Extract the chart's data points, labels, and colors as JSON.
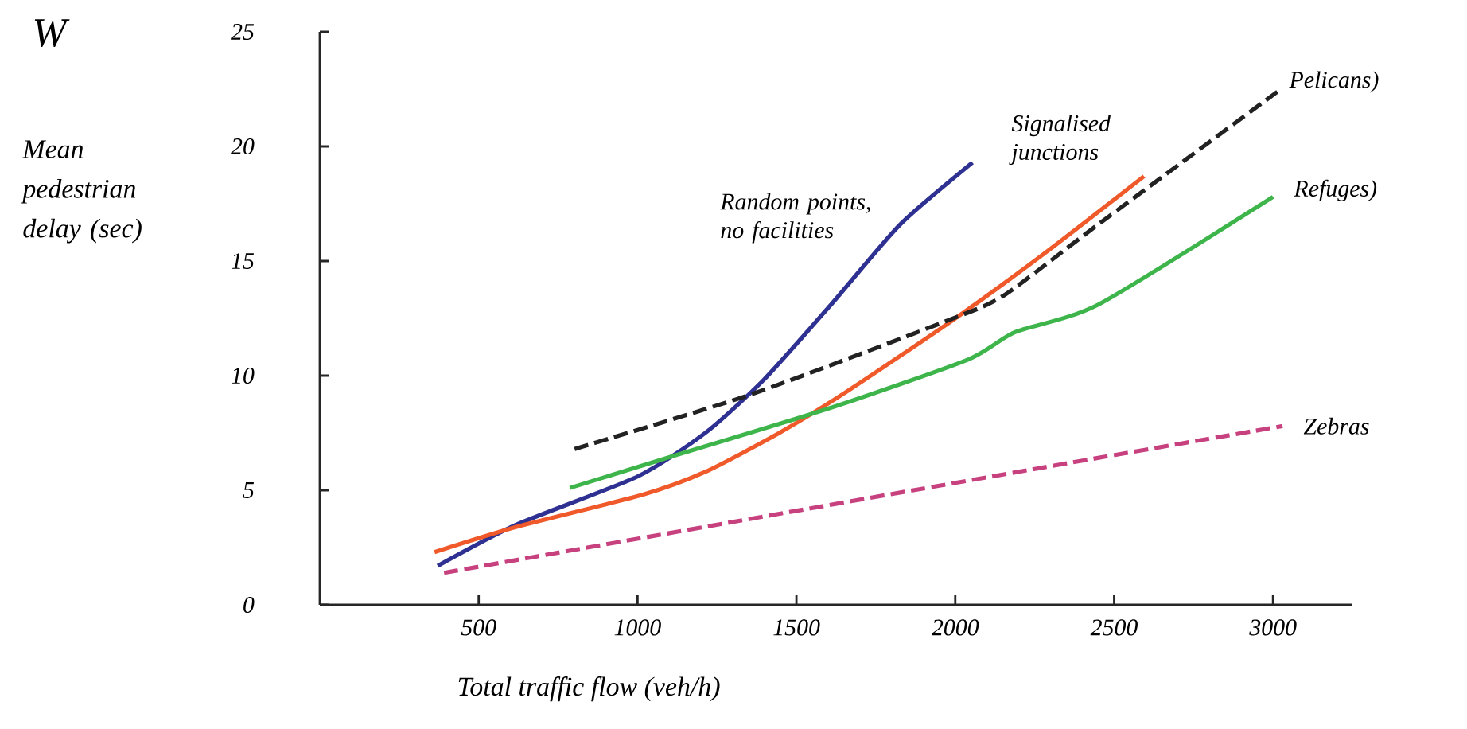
{
  "chart_data": {
    "type": "line",
    "title": "W",
    "xlabel": "Total traffic flow (veh/h)",
    "ylabel": "Mean pedestrian delay (sec)",
    "xlim": [
      0,
      3250
    ],
    "ylim": [
      0,
      25
    ],
    "xticks": [
      500,
      1000,
      1500,
      2000,
      2500,
      3000
    ],
    "yticks": [
      0,
      5,
      10,
      15,
      20,
      25
    ],
    "grid": false,
    "legend": false,
    "marker": "none",
    "series": [
      {
        "name": "Random points, no facilities",
        "color": "#2e3192",
        "line_style": "solid",
        "x": [
          371,
          619,
          1000,
          1213,
          1396,
          1609,
          1827,
          2054
        ],
        "values": [
          1.7,
          3.5,
          5.6,
          7.5,
          9.8,
          13.1,
          16.6,
          19.3
        ]
      },
      {
        "name": "Signalised junctions",
        "color": "#f0592a",
        "line_style": "solid",
        "x": [
          361,
          619,
          1015,
          1213,
          1446,
          1658,
          1990,
          2287,
          2594
        ],
        "values": [
          2.3,
          3.4,
          4.8,
          5.8,
          7.5,
          9.3,
          12.4,
          15.4,
          18.7
        ]
      },
      {
        "name": "Pelicans)",
        "color": "#222222",
        "line_style": "dashed",
        "x": [
          802,
          1361,
          1975,
          2153,
          2450,
          3015
        ],
        "values": [
          6.8,
          9.2,
          12.4,
          13.5,
          16.6,
          22.4
        ]
      },
      {
        "name": "Refuges)",
        "color": "#3db54a",
        "line_style": "solid",
        "x": [
          787,
          1114,
          1609,
          2040,
          2188,
          2450,
          3000
        ],
        "values": [
          5.1,
          6.5,
          8.6,
          10.7,
          11.9,
          13.1,
          17.8
        ]
      },
      {
        "name": "Zebras",
        "color": "#c8417f",
        "line_style": "dashed",
        "x": [
          391,
          2238,
          3030
        ],
        "values": [
          1.4,
          5.9,
          7.8
        ]
      }
    ]
  }
}
